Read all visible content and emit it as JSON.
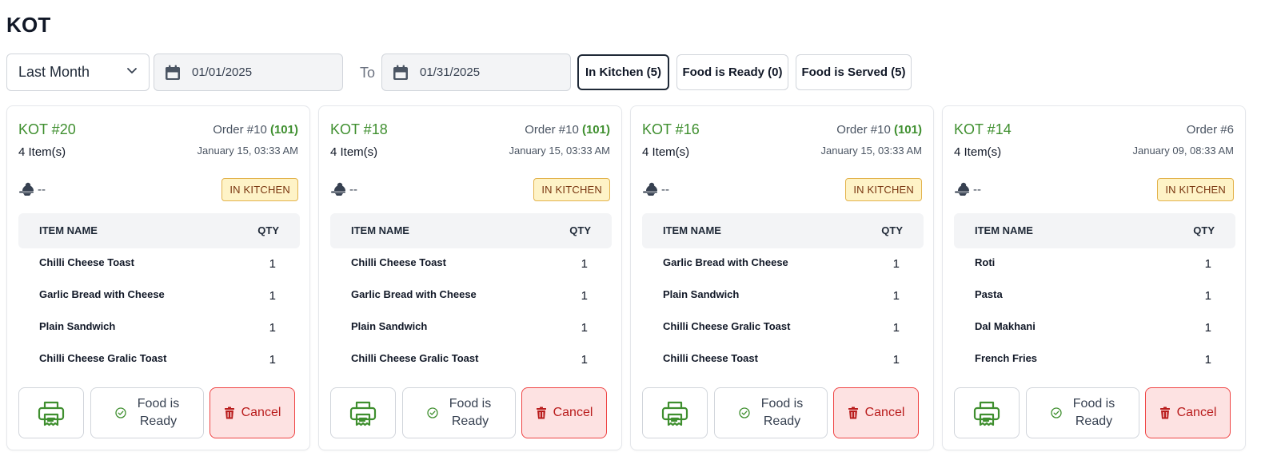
{
  "page_title": "KOT",
  "filters": {
    "range_selected": "Last Month",
    "from_date": "01/01/2025",
    "to_label": "To",
    "to_date": "01/31/2025"
  },
  "status_tabs": [
    {
      "label": "In Kitchen (5)",
      "active": true
    },
    {
      "label": "Food is Ready (0)",
      "active": false
    },
    {
      "label": "Food is Served (5)",
      "active": false
    }
  ],
  "table_headers": {
    "name": "ITEM NAME",
    "qty": "QTY"
  },
  "card_actions": {
    "ready_label_line1": "Food is",
    "ready_label_line2": "Ready",
    "cancel_label": "Cancel"
  },
  "colors": {
    "accent_green": "#3f8f2f",
    "badge_bg": "#fef3c7",
    "cancel_red": "#b91c1c"
  },
  "kots": [
    {
      "kot_no": "KOT #20",
      "order_prefix": "Order #10",
      "table": "(101)",
      "item_count": "4 Item(s)",
      "time": "January 15, 03:33 AM",
      "waiter": "--",
      "status": "IN KITCHEN",
      "items": [
        {
          "name": "Chilli Cheese Toast",
          "qty": "1"
        },
        {
          "name": "Garlic Bread with Cheese",
          "qty": "1"
        },
        {
          "name": "Plain Sandwich",
          "qty": "1"
        },
        {
          "name": "Chilli Cheese Gralic Toast",
          "qty": "1"
        }
      ]
    },
    {
      "kot_no": "KOT #18",
      "order_prefix": "Order #10",
      "table": "(101)",
      "item_count": "4 Item(s)",
      "time": "January 15, 03:33 AM",
      "waiter": "--",
      "status": "IN KITCHEN",
      "items": [
        {
          "name": "Chilli Cheese Toast",
          "qty": "1"
        },
        {
          "name": "Garlic Bread with Cheese",
          "qty": "1"
        },
        {
          "name": "Plain Sandwich",
          "qty": "1"
        },
        {
          "name": "Chilli Cheese Gralic Toast",
          "qty": "1"
        }
      ]
    },
    {
      "kot_no": "KOT #16",
      "order_prefix": "Order #10",
      "table": "(101)",
      "item_count": "4 Item(s)",
      "time": "January 15, 03:33 AM",
      "waiter": "--",
      "status": "IN KITCHEN",
      "items": [
        {
          "name": "Garlic Bread with Cheese",
          "qty": "1"
        },
        {
          "name": "Plain Sandwich",
          "qty": "1"
        },
        {
          "name": "Chilli Cheese Gralic Toast",
          "qty": "1"
        },
        {
          "name": "Chilli Cheese Toast",
          "qty": "1"
        }
      ]
    },
    {
      "kot_no": "KOT #14",
      "order_prefix": "Order #6",
      "table": "",
      "item_count": "4 Item(s)",
      "time": "January 09, 08:33 AM",
      "waiter": "--",
      "status": "IN KITCHEN",
      "items": [
        {
          "name": "Roti",
          "qty": "1"
        },
        {
          "name": "Pasta",
          "qty": "1"
        },
        {
          "name": "Dal Makhani",
          "qty": "1"
        },
        {
          "name": "French Fries",
          "qty": "1"
        }
      ]
    }
  ]
}
